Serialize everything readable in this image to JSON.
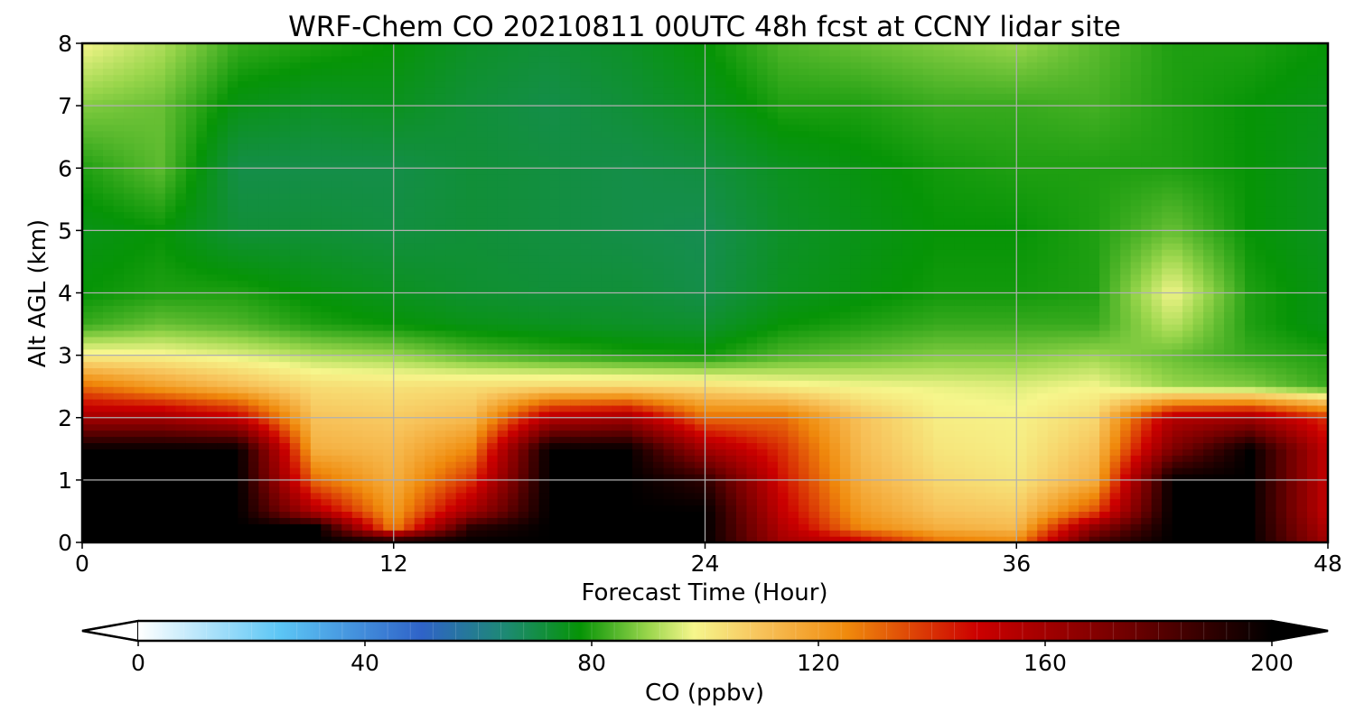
{
  "chart_data": {
    "type": "heatmap",
    "title": "WRF-Chem CO  20210811 00UTC 48h fcst at CCNY lidar site",
    "xlabel": "Forecast Time (Hour)",
    "ylabel": "Alt AGL (km)",
    "xlim": [
      0,
      48
    ],
    "ylim": [
      0,
      8
    ],
    "x_ticks": [
      0,
      12,
      24,
      36,
      48
    ],
    "y_ticks": [
      0,
      1,
      2,
      3,
      4,
      5,
      6,
      7,
      8
    ],
    "grid": true,
    "colorbar": {
      "label": "CO  (ppbv)",
      "orientation": "horizontal",
      "placement": "bottom",
      "range": [
        0,
        200
      ],
      "ticks": [
        0,
        40,
        80,
        120,
        160,
        200
      ],
      "extend": "both",
      "color_stops": [
        {
          "value": 0,
          "color": "#ffffff"
        },
        {
          "value": 25,
          "color": "#5cc6f5"
        },
        {
          "value": 50,
          "color": "#2f63c8"
        },
        {
          "value": 65,
          "color": "#1d8a72"
        },
        {
          "value": 78,
          "color": "#069406"
        },
        {
          "value": 90,
          "color": "#9ad64c"
        },
        {
          "value": 98,
          "color": "#f6f68c"
        },
        {
          "value": 110,
          "color": "#f7c25a"
        },
        {
          "value": 125,
          "color": "#f08a0c"
        },
        {
          "value": 148,
          "color": "#cc0000"
        },
        {
          "value": 175,
          "color": "#6e0000"
        },
        {
          "value": 200,
          "color": "#000000"
        }
      ]
    },
    "x": [
      0,
      3,
      6,
      9,
      12,
      15,
      18,
      21,
      24,
      27,
      30,
      33,
      36,
      39,
      42,
      45,
      48
    ],
    "y": [
      0,
      0.25,
      0.5,
      1,
      1.5,
      2,
      2.5,
      3,
      3.5,
      4,
      5,
      6,
      7,
      8
    ],
    "values": [
      [
        200,
        200,
        200,
        200,
        200,
        200,
        200,
        200,
        200,
        160,
        150,
        130,
        125,
        185,
        200,
        200,
        160
      ],
      [
        200,
        200,
        200,
        200,
        125,
        190,
        200,
        200,
        200,
        155,
        125,
        115,
        112,
        165,
        200,
        200,
        155
      ],
      [
        200,
        200,
        200,
        155,
        120,
        160,
        200,
        200,
        200,
        150,
        120,
        110,
        108,
        135,
        200,
        200,
        150
      ],
      [
        200,
        200,
        200,
        130,
        115,
        140,
        200,
        200,
        190,
        145,
        115,
        105,
        102,
        115,
        200,
        200,
        150
      ],
      [
        200,
        200,
        200,
        115,
        112,
        125,
        200,
        200,
        160,
        140,
        112,
        102,
        100,
        110,
        170,
        200,
        150
      ],
      [
        160,
        160,
        150,
        110,
        108,
        112,
        155,
        160,
        130,
        130,
        110,
        100,
        99,
        105,
        155,
        160,
        140
      ],
      [
        130,
        120,
        112,
        104,
        103,
        104,
        105,
        105,
        104,
        100,
        98,
        97,
        96,
        98,
        90,
        88,
        82
      ],
      [
        100,
        99,
        96,
        92,
        90,
        85,
        82,
        80,
        79,
        84,
        86,
        88,
        88,
        90,
        86,
        82,
        80
      ],
      [
        82,
        86,
        84,
        80,
        78,
        76,
        75,
        74,
        73,
        78,
        80,
        82,
        82,
        82,
        93,
        80,
        76
      ],
      [
        78,
        80,
        80,
        77,
        75,
        73,
        72,
        72,
        70,
        75,
        77,
        79,
        79,
        80,
        98,
        80,
        76
      ],
      [
        76,
        78,
        72,
        72,
        71,
        72,
        71,
        70,
        69,
        74,
        76,
        78,
        78,
        80,
        86,
        78,
        75
      ],
      [
        80,
        85,
        70,
        70,
        70,
        72,
        71,
        70,
        71,
        75,
        77,
        79,
        80,
        80,
        80,
        78,
        75
      ],
      [
        88,
        86,
        76,
        74,
        75,
        72,
        70,
        72,
        75,
        80,
        80,
        82,
        82,
        83,
        80,
        78,
        76
      ],
      [
        98,
        92,
        82,
        80,
        78,
        74,
        72,
        74,
        78,
        84,
        86,
        88,
        90,
        85,
        80,
        80,
        78
      ]
    ]
  }
}
